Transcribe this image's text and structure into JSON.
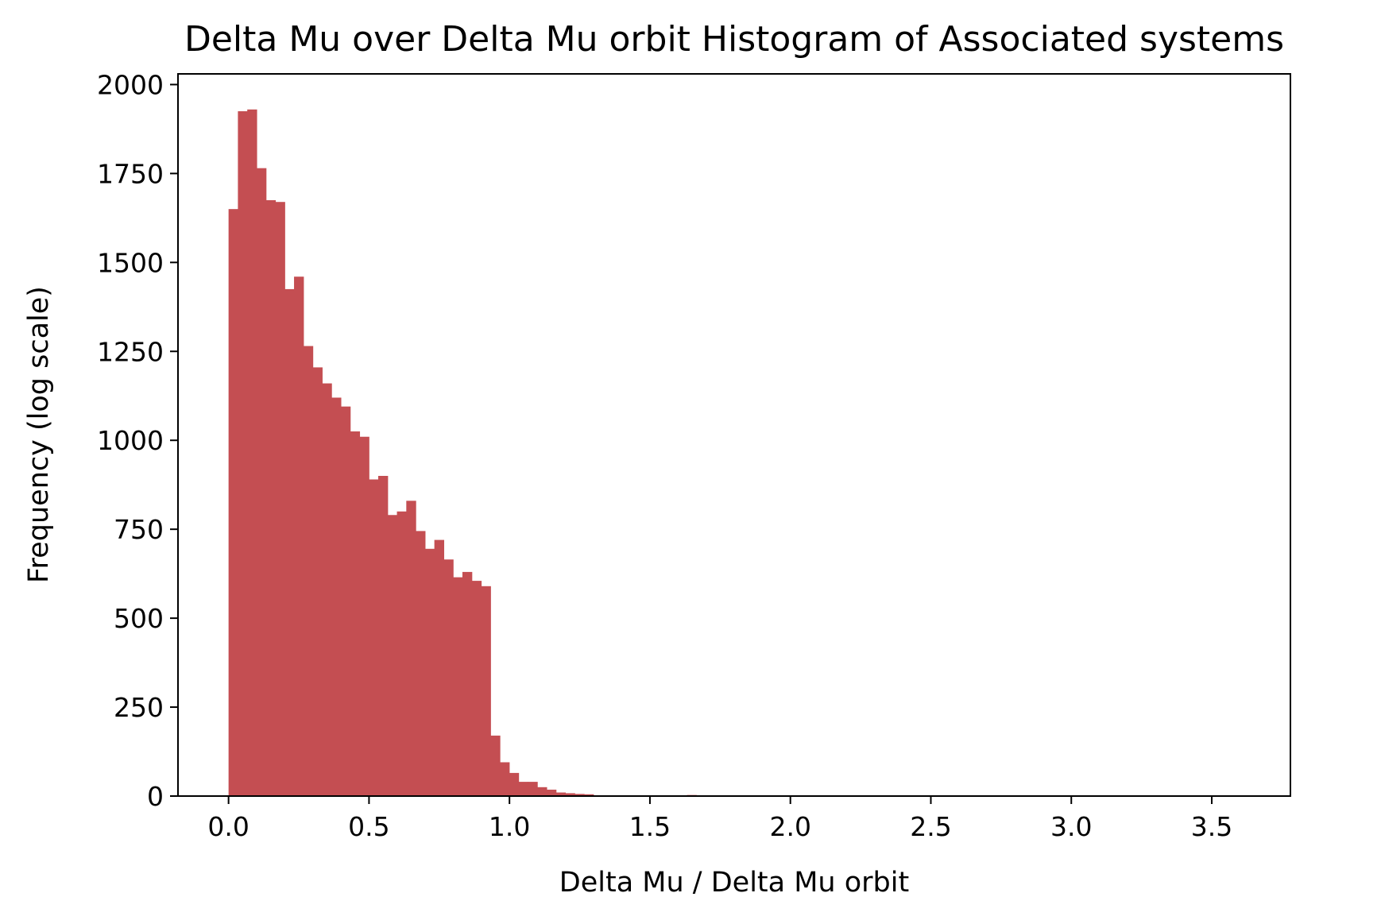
{
  "chart_data": {
    "type": "bar",
    "title": "Delta Mu over Delta Mu orbit Histogram of Associated systems",
    "xlabel": "Delta Mu / Delta Mu orbit",
    "ylabel": "Frequency (log scale)",
    "xlim": [
      -0.18,
      3.78
    ],
    "ylim": [
      0,
      2030
    ],
    "xticks": [
      0.0,
      0.5,
      1.0,
      1.5,
      2.0,
      2.5,
      3.0,
      3.5
    ],
    "xtick_labels": [
      "0.0",
      "0.5",
      "1.0",
      "1.5",
      "2.0",
      "2.5",
      "3.0",
      "3.5"
    ],
    "yticks": [
      0,
      250,
      500,
      750,
      1000,
      1250,
      1500,
      1750,
      2000
    ],
    "ytick_labels": [
      "0",
      "250",
      "500",
      "750",
      "1000",
      "1250",
      "1500",
      "1750",
      "2000"
    ],
    "grid": false,
    "bar_color": "#c44e52",
    "bin_start": 0.0,
    "bin_width": 0.0333,
    "values": [
      1650,
      1925,
      1930,
      1765,
      1675,
      1670,
      1425,
      1460,
      1265,
      1205,
      1160,
      1120,
      1095,
      1025,
      1010,
      890,
      900,
      790,
      800,
      830,
      745,
      695,
      720,
      665,
      615,
      630,
      605,
      590,
      170,
      95,
      65,
      40,
      40,
      25,
      18,
      10,
      8,
      6,
      5,
      2,
      2,
      1,
      1,
      1,
      1,
      1,
      0,
      0,
      0,
      3,
      2,
      1,
      1,
      0,
      0,
      0,
      0,
      0,
      1,
      0,
      0,
      0,
      0,
      0,
      0,
      0,
      0,
      0,
      0,
      0,
      0,
      0,
      0,
      0,
      0,
      0,
      0,
      0,
      0,
      0,
      0,
      0,
      0,
      0,
      0,
      0,
      0,
      0,
      0,
      0,
      0,
      0,
      0,
      0,
      0,
      0,
      0,
      0,
      0,
      0,
      0,
      0,
      0,
      0,
      0,
      0,
      1,
      1
    ]
  }
}
